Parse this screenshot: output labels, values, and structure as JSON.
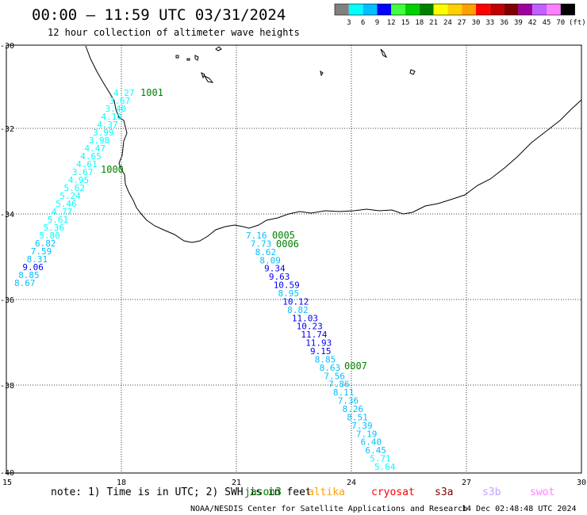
{
  "title": "00:00 – 11:59 UTC 03/31/2024",
  "subtitle": "12 hour collection of altimeter wave heights",
  "legend": {
    "colors": [
      "#808080",
      "#00ffff",
      "#00bfff",
      "#0000ff",
      "#40ff40",
      "#00d000",
      "#008000",
      "#ffff00",
      "#ffd000",
      "#ffa000",
      "#ff0000",
      "#c00000",
      "#800000",
      "#a000a0",
      "#c060ff",
      "#ff80ff",
      "#000000"
    ],
    "labels": [
      "3",
      "6",
      "9",
      "12",
      "15",
      "18",
      "21",
      "24",
      "27",
      "30",
      "33",
      "36",
      "39",
      "42",
      "45",
      "70"
    ],
    "unit": "(ft)"
  },
  "axes": {
    "lat_ticks": [
      "-30",
      "-32",
      "-34",
      "-36",
      "-38",
      "-40"
    ],
    "lon_ticks": [
      "15",
      "18",
      "21",
      "24",
      "27",
      "30"
    ]
  },
  "passes": [
    {
      "id": "1001",
      "lat": -31.2
    },
    {
      "id": "1000",
      "lat": -32.95
    },
    {
      "id": "0005",
      "lat": -34.55
    },
    {
      "id": "0006",
      "lat": -34.75
    },
    {
      "id": "0007",
      "lat": -37.5
    }
  ],
  "track1": [
    {
      "v": "4.27",
      "c": "#00ffff"
    },
    {
      "v": "3.67",
      "c": "#00ffff"
    },
    {
      "v": "3.40",
      "c": "#00ffff"
    },
    {
      "v": "4.10",
      "c": "#00ffff"
    },
    {
      "v": "4.37",
      "c": "#00ffff"
    },
    {
      "v": "3.99",
      "c": "#00ffff"
    },
    {
      "v": "3.98",
      "c": "#00ffff"
    },
    {
      "v": "4.47",
      "c": "#00ffff"
    },
    {
      "v": "4.65",
      "c": "#00ffff"
    },
    {
      "v": "4.61",
      "c": "#00ffff"
    },
    {
      "v": "3.67",
      "c": "#00ffff"
    },
    {
      "v": "4.95",
      "c": "#00ffff"
    },
    {
      "v": "5.62",
      "c": "#00ffff"
    },
    {
      "v": "5.24",
      "c": "#00ffff"
    },
    {
      "v": "5.46",
      "c": "#00ffff"
    },
    {
      "v": "4.77",
      "c": "#00ffff"
    },
    {
      "v": "5.61",
      "c": "#00ffff"
    },
    {
      "v": "5.36",
      "c": "#00ffff"
    },
    {
      "v": "5.80",
      "c": "#00ffff"
    },
    {
      "v": "6.82",
      "c": "#00bfff"
    },
    {
      "v": "7.59",
      "c": "#00bfff"
    },
    {
      "v": "8.31",
      "c": "#00bfff"
    },
    {
      "v": "9.06",
      "c": "#0000ff"
    },
    {
      "v": "8.85",
      "c": "#00bfff"
    },
    {
      "v": "8.67",
      "c": "#00bfff"
    }
  ],
  "track2": [
    {
      "v": "7.16",
      "c": "#00bfff"
    },
    {
      "v": "7.73",
      "c": "#00bfff"
    },
    {
      "v": "8.62",
      "c": "#00bfff"
    },
    {
      "v": "8.09",
      "c": "#00bfff"
    },
    {
      "v": "9.34",
      "c": "#0000ff"
    },
    {
      "v": "9.63",
      "c": "#0000ff"
    },
    {
      "v": "10.59",
      "c": "#0000ff"
    },
    {
      "v": "8.95",
      "c": "#00bfff"
    },
    {
      "v": "10.12",
      "c": "#0000ff"
    },
    {
      "v": "8.82",
      "c": "#00bfff"
    },
    {
      "v": "11.03",
      "c": "#0000ff"
    },
    {
      "v": "10.23",
      "c": "#0000ff"
    },
    {
      "v": "11.74",
      "c": "#0000ff"
    },
    {
      "v": "11.93",
      "c": "#0000ff"
    },
    {
      "v": "9.15",
      "c": "#0000ff"
    },
    {
      "v": "8.85",
      "c": "#00bfff"
    },
    {
      "v": "8.63",
      "c": "#00bfff"
    },
    {
      "v": "7.56",
      "c": "#00bfff"
    },
    {
      "v": "7.86",
      "c": "#00bfff"
    },
    {
      "v": "8.11",
      "c": "#00bfff"
    },
    {
      "v": "7.36",
      "c": "#00bfff"
    },
    {
      "v": "8.26",
      "c": "#00bfff"
    },
    {
      "v": "8.51",
      "c": "#00bfff"
    },
    {
      "v": "7.39",
      "c": "#00bfff"
    },
    {
      "v": "7.19",
      "c": "#00bfff"
    },
    {
      "v": "6.40",
      "c": "#00bfff"
    },
    {
      "v": "6.45",
      "c": "#00bfff"
    },
    {
      "v": "5.71",
      "c": "#00ffff"
    },
    {
      "v": "5.64",
      "c": "#00ffff"
    }
  ],
  "note": "note: 1) Time is in UTC; 2) SWH is in feet",
  "satellites": [
    {
      "name": "jason3",
      "color": "#008000"
    },
    {
      "name": "altika",
      "color": "#ffa000"
    },
    {
      "name": "cryosat",
      "color": "#ff0000"
    },
    {
      "name": "s3a",
      "color": "#800000"
    },
    {
      "name": "s3b",
      "color": "#c0a0ff"
    },
    {
      "name": "swot",
      "color": "#ff80ff"
    }
  ],
  "footer_left": "NOAA/NESDIS Center for Satellite Applications and Research",
  "footer_right": "14 Dec 02:48:48 UTC 2024"
}
